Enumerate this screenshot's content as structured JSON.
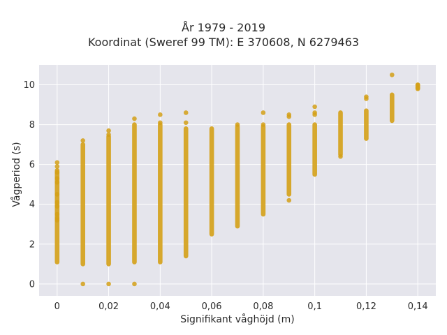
{
  "chart_data": {
    "type": "scatter",
    "title": "År 1979 - 2019",
    "subtitle": "Koordinat (Sweref 99 TM): E 370608, N 6279463",
    "xlabel": "Signifikant våghöjd (m)",
    "ylabel": "Vågperiod (s)",
    "xlim": [
      -0.007,
      0.147
    ],
    "ylim": [
      -0.6,
      11.0
    ],
    "xticks": [
      0,
      0.02,
      0.04,
      0.06,
      0.08,
      0.1,
      0.12,
      0.14
    ],
    "xtick_labels": [
      "0",
      "0,02",
      "0,04",
      "0,06",
      "0,08",
      "0,1",
      "0,12",
      "0,14"
    ],
    "yticks": [
      0,
      2,
      4,
      6,
      8,
      10
    ],
    "ytick_labels": [
      "0",
      "2",
      "4",
      "6",
      "8",
      "10"
    ],
    "grid": true,
    "marker_color": "#D4A017",
    "plot_background": "#E5E5EC",
    "series": [
      {
        "columns": [
          {
            "x": 0.0,
            "ymin": 1.1,
            "ymax": 5.7,
            "extra": [
              6.1,
              5.9,
              5.6,
              5.3,
              5.1,
              4.5,
              4.1,
              3.9,
              3.5,
              3.3,
              3.2
            ]
          },
          {
            "x": 0.01,
            "ymin": 1.0,
            "ymax": 7.0,
            "extra": [
              0.0,
              7.2
            ]
          },
          {
            "x": 0.02,
            "ymin": 1.0,
            "ymax": 7.4,
            "extra": [
              0.0,
              7.7,
              7.5
            ]
          },
          {
            "x": 0.03,
            "ymin": 1.1,
            "ymax": 8.0,
            "extra": [
              0.0,
              8.3
            ]
          },
          {
            "x": 0.04,
            "ymin": 1.1,
            "ymax": 8.0,
            "extra": [
              8.5,
              8.1
            ]
          },
          {
            "x": 0.05,
            "ymin": 1.4,
            "ymax": 7.8,
            "extra": [
              8.6,
              8.1
            ]
          },
          {
            "x": 0.06,
            "ymin": 2.5,
            "ymax": 7.8,
            "extra": []
          },
          {
            "x": 0.07,
            "ymin": 2.9,
            "ymax": 7.9,
            "extra": [
              8.0
            ]
          },
          {
            "x": 0.08,
            "ymin": 3.5,
            "ymax": 7.9,
            "extra": [
              8.6,
              8.0
            ]
          },
          {
            "x": 0.09,
            "ymin": 4.5,
            "ymax": 8.0,
            "extra": [
              8.5,
              8.4,
              4.2
            ]
          },
          {
            "x": 0.1,
            "ymin": 5.5,
            "ymax": 8.0,
            "extra": [
              8.9,
              8.6,
              8.5
            ]
          },
          {
            "x": 0.11,
            "ymin": 6.5,
            "ymax": 8.6,
            "extra": [
              6.4
            ]
          },
          {
            "x": 0.12,
            "ymin": 7.3,
            "ymax": 8.7,
            "extra": [
              9.4,
              9.3
            ]
          },
          {
            "x": 0.13,
            "ymin": 8.2,
            "ymax": 9.5,
            "extra": [
              10.5
            ]
          },
          {
            "x": 0.14,
            "ymin": 9.8,
            "ymax": 10.0,
            "extra": [
              10.0,
              9.85
            ]
          }
        ]
      }
    ]
  }
}
